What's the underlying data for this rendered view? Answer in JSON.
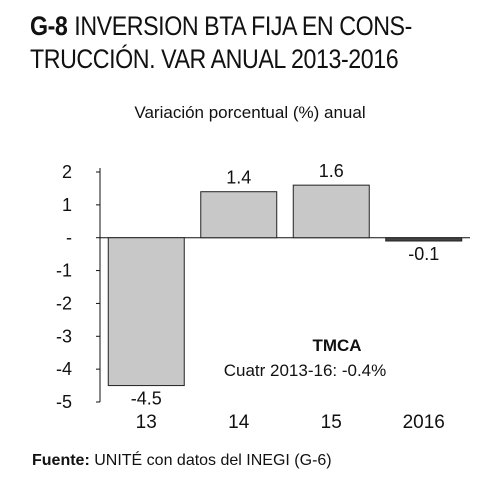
{
  "header": {
    "code": "G-8",
    "title_line1": "INVERSION BTA FIJA EN CONS-",
    "title_line2": "TRUCCIÓN. VAR ANUAL 2013-2016"
  },
  "chart_data": {
    "type": "bar",
    "title": "INVERSION BTA FIJA EN CONSTRUCCIÓN. VAR ANUAL 2013-2016",
    "subtitle": "Variación porcentual (%) anual",
    "categories": [
      "13",
      "14",
      "15",
      "2016"
    ],
    "values": [
      -4.5,
      1.4,
      1.6,
      -0.1
    ],
    "value_labels": [
      "-4.5",
      "1.4",
      "1.6",
      "-0.1"
    ],
    "ylim": [
      -5,
      2
    ],
    "yticks": [
      {
        "value": 2,
        "label": "2"
      },
      {
        "value": 1,
        "label": "1"
      },
      {
        "value": 0,
        "label": "-"
      },
      {
        "value": -1,
        "label": "-1"
      },
      {
        "value": -2,
        "label": "-2"
      },
      {
        "value": -3,
        "label": "-3"
      },
      {
        "value": -4,
        "label": "-4"
      },
      {
        "value": -5,
        "label": "-5"
      }
    ],
    "bar_color": "#c8c8c8",
    "bar_stroke": "#222222",
    "annotation": {
      "heading": "TMCA",
      "text": "Cuatr 2013-16:  -0.4%"
    }
  },
  "footer": {
    "source_label": "Fuente:",
    "source_text": " UNITÉ con datos del INEGI (G-6)"
  }
}
